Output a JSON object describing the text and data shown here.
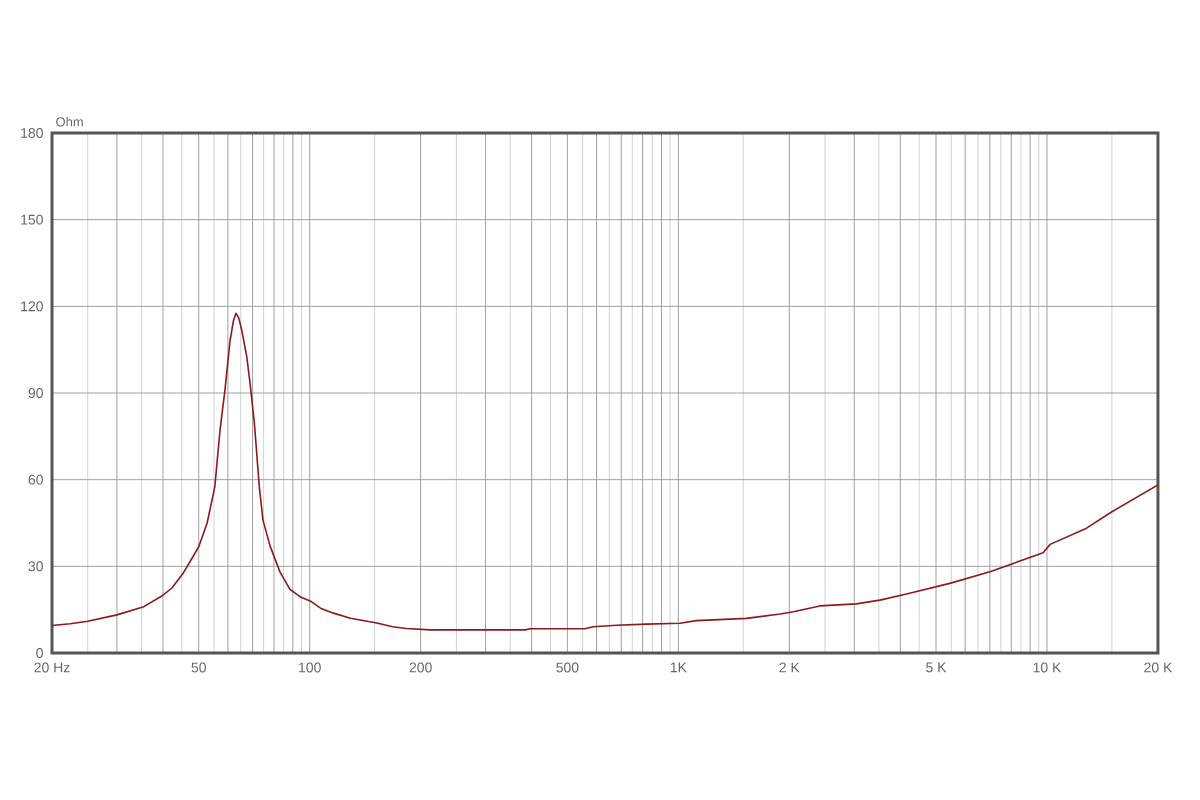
{
  "chart_data": {
    "type": "line",
    "ylabel": "Ohm",
    "x": [
      20,
      22.4,
      25,
      30,
      35.3,
      40,
      42.3,
      45.3,
      48.3,
      50.1,
      52.7,
      55.3,
      57.1,
      58.9,
      60.8,
      62.1,
      63.1,
      64.2,
      65.4,
      67.5,
      68.9,
      70.8,
      73,
      74.7,
      78.1,
      83.1,
      88.4,
      94.1,
      101,
      107,
      116,
      129,
      152,
      168,
      183,
      212,
      384,
      396,
      558,
      587,
      680,
      820,
      1010,
      1120,
      1530,
      1890,
      2050,
      2420,
      3040,
      3520,
      4160,
      5450,
      7000,
      8100,
      9760,
      10200,
      12800,
      15000,
      20000
    ],
    "series": [
      {
        "color": "#8b1a1a",
        "values": [
          9.5,
          10.1,
          11.0,
          13.2,
          15.9,
          20.0,
          22.5,
          27.5,
          33.5,
          37,
          45,
          57.6,
          77,
          91,
          108,
          115,
          117.6,
          116,
          111.8,
          102.6,
          93.4,
          79.5,
          57.6,
          46,
          37,
          28,
          22,
          19.5,
          17.8,
          15.5,
          13.8,
          12.0,
          10.4,
          9.1,
          8.5,
          8.0,
          8.0,
          8.4,
          8.4,
          9.1,
          9.6,
          10.0,
          10.3,
          11.2,
          12.0,
          13.5,
          14.3,
          16.3,
          17.0,
          18.3,
          20.4,
          24.1,
          28.1,
          31.0,
          34.7,
          37.6,
          43.2,
          48.9,
          58.2
        ]
      }
    ],
    "log": "x",
    "xlim": [
      20,
      20000
    ],
    "ylim": [
      0,
      180
    ],
    "xticks": [
      {
        "value": 20,
        "label": "20 Hz"
      },
      {
        "value": 25,
        "label": null
      },
      {
        "value": 30,
        "label": null
      },
      {
        "value": 35,
        "label": null
      },
      {
        "value": 40,
        "label": null
      },
      {
        "value": 45,
        "label": null
      },
      50,
      {
        "value": 55,
        "label": null
      },
      {
        "value": 60,
        "label": null
      },
      {
        "value": 65,
        "label": null
      },
      {
        "value": 70,
        "label": null
      },
      {
        "value": 75,
        "label": null
      },
      {
        "value": 80,
        "label": null
      },
      {
        "value": 85,
        "label": null
      },
      {
        "value": 90,
        "label": null
      },
      {
        "value": 95,
        "label": null
      },
      100,
      {
        "value": 150,
        "label": null
      },
      200,
      {
        "value": 250,
        "label": null
      },
      {
        "value": 300,
        "label": null
      },
      {
        "value": 350,
        "label": null
      },
      {
        "value": 400,
        "label": null
      },
      {
        "value": 450,
        "label": null
      },
      500,
      {
        "value": 550,
        "label": null
      },
      {
        "value": 600,
        "label": null
      },
      {
        "value": 650,
        "label": null
      },
      {
        "value": 700,
        "label": null
      },
      {
        "value": 750,
        "label": null
      },
      {
        "value": 800,
        "label": null
      },
      {
        "value": 850,
        "label": null
      },
      {
        "value": 900,
        "label": null
      },
      {
        "value": 950,
        "label": null
      },
      {
        "value": 1000,
        "label": "1K"
      },
      {
        "value": 1500,
        "label": null
      },
      {
        "value": 2000,
        "label": "2 K"
      },
      {
        "value": 2500,
        "label": null
      },
      {
        "value": 3000,
        "label": null
      },
      {
        "value": 3500,
        "label": null
      },
      {
        "value": 4000,
        "label": null
      },
      {
        "value": 4500,
        "label": null
      },
      {
        "value": 5000,
        "label": "5 K"
      },
      {
        "value": 5500,
        "label": null
      },
      {
        "value": 6000,
        "label": null
      },
      {
        "value": 6500,
        "label": null
      },
      {
        "value": 7000,
        "label": null
      },
      {
        "value": 7500,
        "label": null
      },
      {
        "value": 8000,
        "label": null
      },
      {
        "value": 8500,
        "label": null
      },
      {
        "value": 9000,
        "label": null
      },
      {
        "value": 9500,
        "label": null
      },
      {
        "value": 10000,
        "label": "10 K"
      },
      {
        "value": 15000,
        "label": null
      },
      {
        "value": 20000,
        "label": "20 K"
      }
    ],
    "yticks": [
      0,
      30,
      60,
      90,
      120,
      150,
      180
    ],
    "grid": true
  }
}
